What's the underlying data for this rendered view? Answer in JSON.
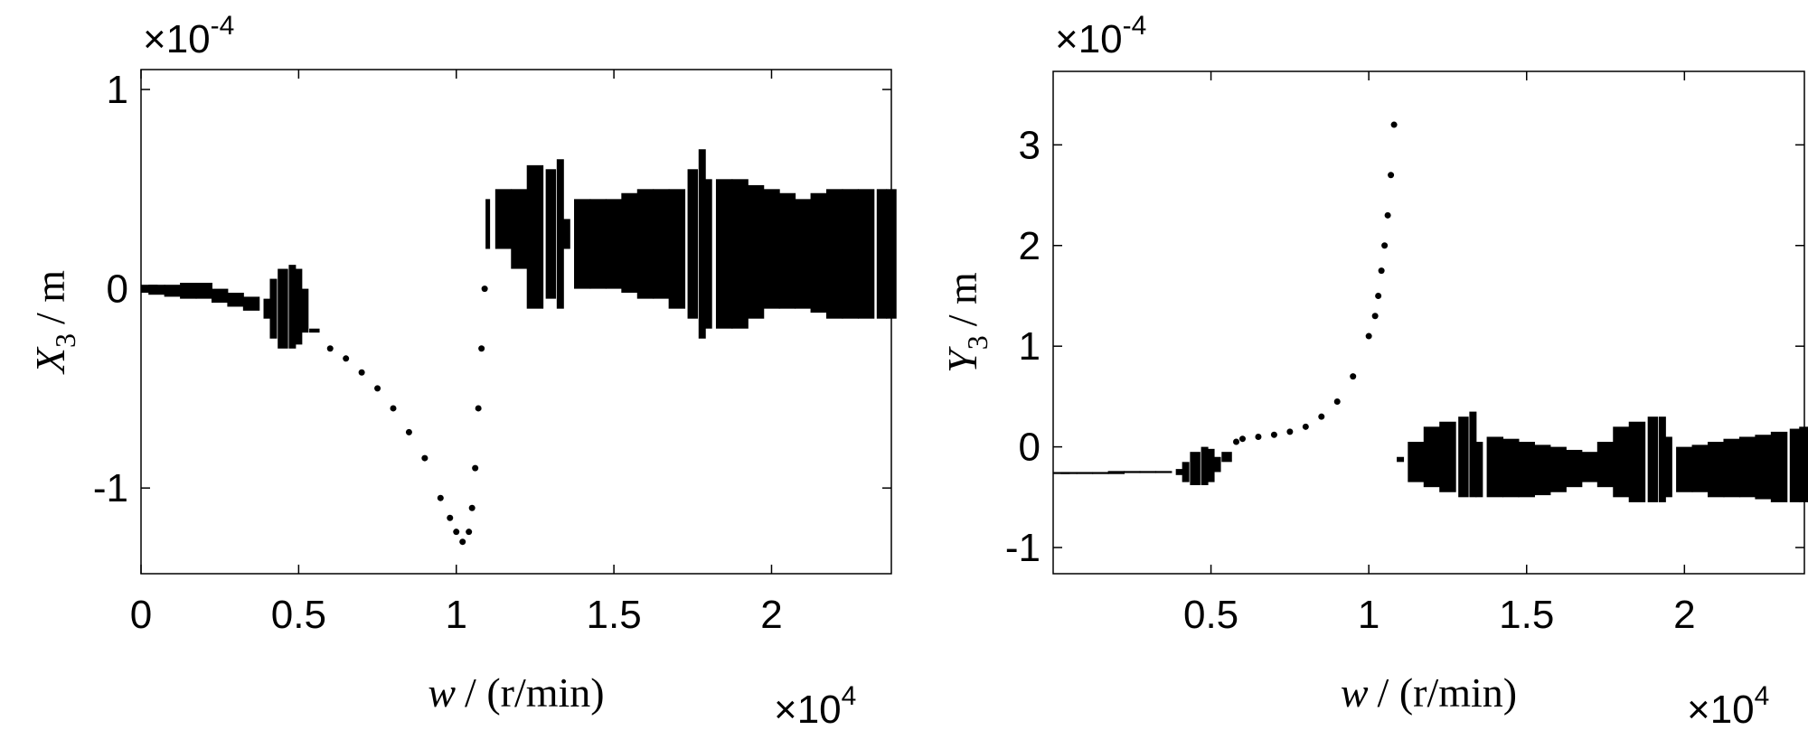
{
  "chart_data": [
    {
      "type": "range",
      "color": "#000000",
      "xlabel": {
        "symbol": "w",
        "unit": "/ (r/min)"
      },
      "ylabel": {
        "symbol": "X",
        "subscript": "3",
        "unit": "/ m"
      },
      "x_multiplier": {
        "base": "×10",
        "exponent": "4"
      },
      "y_multiplier": {
        "base": "×10",
        "exponent": "-4"
      },
      "xlim": [
        0,
        2.38
      ],
      "ylim": [
        -1.43,
        1.1
      ],
      "xticks": [
        0,
        0.5,
        1,
        1.5,
        2
      ],
      "yticks": [
        -1,
        0,
        1
      ],
      "x": [
        0,
        0.05,
        0.1,
        0.15,
        0.2,
        0.25,
        0.3,
        0.35,
        0.4,
        0.42,
        0.45,
        0.48,
        0.5,
        0.52,
        0.55,
        0.6,
        0.65,
        0.7,
        0.75,
        0.8,
        0.85,
        0.9,
        0.95,
        0.98,
        1.0,
        1.02,
        1.04,
        1.05,
        1.06,
        1.07,
        1.08,
        1.09,
        1.1,
        1.15,
        1.2,
        1.25,
        1.3,
        1.33,
        1.35,
        1.4,
        1.45,
        1.5,
        1.55,
        1.6,
        1.65,
        1.7,
        1.75,
        1.78,
        1.8,
        1.85,
        1.9,
        1.95,
        2.0,
        2.05,
        2.1,
        2.15,
        2.2,
        2.25,
        2.3,
        2.35,
        2.38
      ],
      "low": [
        -0.02,
        -0.03,
        -0.04,
        -0.05,
        -0.05,
        -0.07,
        -0.09,
        -0.11,
        -0.15,
        -0.25,
        -0.3,
        -0.3,
        -0.28,
        -0.22,
        -0.22,
        -0.3,
        -0.35,
        -0.42,
        -0.5,
        -0.6,
        -0.72,
        -0.85,
        -1.05,
        -1.15,
        -1.22,
        -1.27,
        -1.22,
        -1.1,
        -0.9,
        -0.6,
        -0.3,
        0.0,
        0.2,
        0.2,
        0.1,
        -0.1,
        -0.05,
        -0.1,
        0.2,
        0.0,
        0.0,
        0.0,
        -0.02,
        -0.05,
        -0.05,
        -0.1,
        -0.15,
        -0.25,
        -0.2,
        -0.2,
        -0.2,
        -0.15,
        -0.1,
        -0.1,
        -0.1,
        -0.12,
        -0.15,
        -0.15,
        -0.15,
        -0.15,
        -0.15
      ],
      "high": [
        0.02,
        0.02,
        0.02,
        0.03,
        0.03,
        0.0,
        -0.02,
        -0.04,
        -0.05,
        0.05,
        0.1,
        0.12,
        0.1,
        0.0,
        -0.2,
        -0.3,
        -0.35,
        -0.42,
        -0.5,
        -0.6,
        -0.72,
        -0.85,
        -1.05,
        -1.15,
        -1.22,
        -1.27,
        -1.22,
        -1.1,
        -0.9,
        -0.6,
        -0.3,
        0.0,
        0.45,
        0.5,
        0.5,
        0.62,
        0.6,
        0.65,
        0.35,
        0.45,
        0.45,
        0.45,
        0.48,
        0.5,
        0.5,
        0.5,
        0.6,
        0.7,
        0.55,
        0.55,
        0.55,
        0.52,
        0.5,
        0.48,
        0.45,
        0.48,
        0.5,
        0.5,
        0.5,
        0.5,
        0.5
      ]
    },
    {
      "type": "range",
      "color": "#000000",
      "xlabel": {
        "symbol": "w",
        "unit": "/ (r/min)"
      },
      "ylabel": {
        "symbol": "Y",
        "subscript": "3",
        "unit": "/ m"
      },
      "x_multiplier": {
        "base": "×10",
        "exponent": "4"
      },
      "y_multiplier": {
        "base": "×10",
        "exponent": "-4"
      },
      "xlim": [
        0,
        2.38
      ],
      "ylim": [
        -1.26,
        3.73
      ],
      "xticks": [
        0.5,
        1,
        1.5,
        2
      ],
      "yticks": [
        -1,
        0,
        1,
        2,
        3
      ],
      "x": [
        0,
        0.05,
        0.1,
        0.15,
        0.2,
        0.25,
        0.3,
        0.35,
        0.4,
        0.42,
        0.45,
        0.48,
        0.5,
        0.52,
        0.55,
        0.58,
        0.6,
        0.65,
        0.7,
        0.75,
        0.8,
        0.85,
        0.9,
        0.95,
        1.0,
        1.02,
        1.03,
        1.04,
        1.05,
        1.06,
        1.07,
        1.08,
        1.1,
        1.15,
        1.2,
        1.25,
        1.3,
        1.33,
        1.35,
        1.4,
        1.45,
        1.5,
        1.55,
        1.6,
        1.65,
        1.7,
        1.75,
        1.8,
        1.85,
        1.9,
        1.93,
        1.95,
        2.0,
        2.05,
        2.1,
        2.15,
        2.2,
        2.25,
        2.3,
        2.35,
        2.38
      ],
      "low": [
        -0.27,
        -0.27,
        -0.27,
        -0.27,
        -0.27,
        -0.26,
        -0.26,
        -0.26,
        -0.28,
        -0.35,
        -0.38,
        -0.38,
        -0.35,
        -0.25,
        -0.15,
        0.05,
        0.08,
        0.1,
        0.12,
        0.15,
        0.2,
        0.3,
        0.45,
        0.7,
        1.1,
        1.3,
        1.5,
        1.75,
        2.0,
        2.3,
        2.7,
        3.2,
        -0.15,
        -0.35,
        -0.4,
        -0.45,
        -0.5,
        -0.5,
        -0.5,
        -0.5,
        -0.5,
        -0.5,
        -0.48,
        -0.45,
        -0.4,
        -0.35,
        -0.4,
        -0.5,
        -0.55,
        -0.55,
        -0.55,
        -0.5,
        -0.45,
        -0.45,
        -0.5,
        -0.5,
        -0.5,
        -0.52,
        -0.55,
        -0.55,
        -0.55
      ],
      "high": [
        -0.25,
        -0.25,
        -0.25,
        -0.25,
        -0.24,
        -0.24,
        -0.24,
        -0.24,
        -0.22,
        -0.15,
        -0.05,
        0.0,
        -0.02,
        -0.1,
        -0.05,
        0.05,
        0.08,
        0.1,
        0.12,
        0.15,
        0.2,
        0.3,
        0.45,
        0.7,
        1.1,
        1.3,
        1.5,
        1.75,
        2.0,
        2.3,
        2.7,
        3.2,
        -0.1,
        0.05,
        0.2,
        0.25,
        0.3,
        0.35,
        0.05,
        0.1,
        0.08,
        0.05,
        0.02,
        0.0,
        -0.03,
        -0.05,
        0.05,
        0.2,
        0.25,
        0.3,
        0.3,
        0.1,
        0.0,
        0.02,
        0.05,
        0.08,
        0.1,
        0.12,
        0.15,
        0.18,
        0.2
      ]
    }
  ]
}
